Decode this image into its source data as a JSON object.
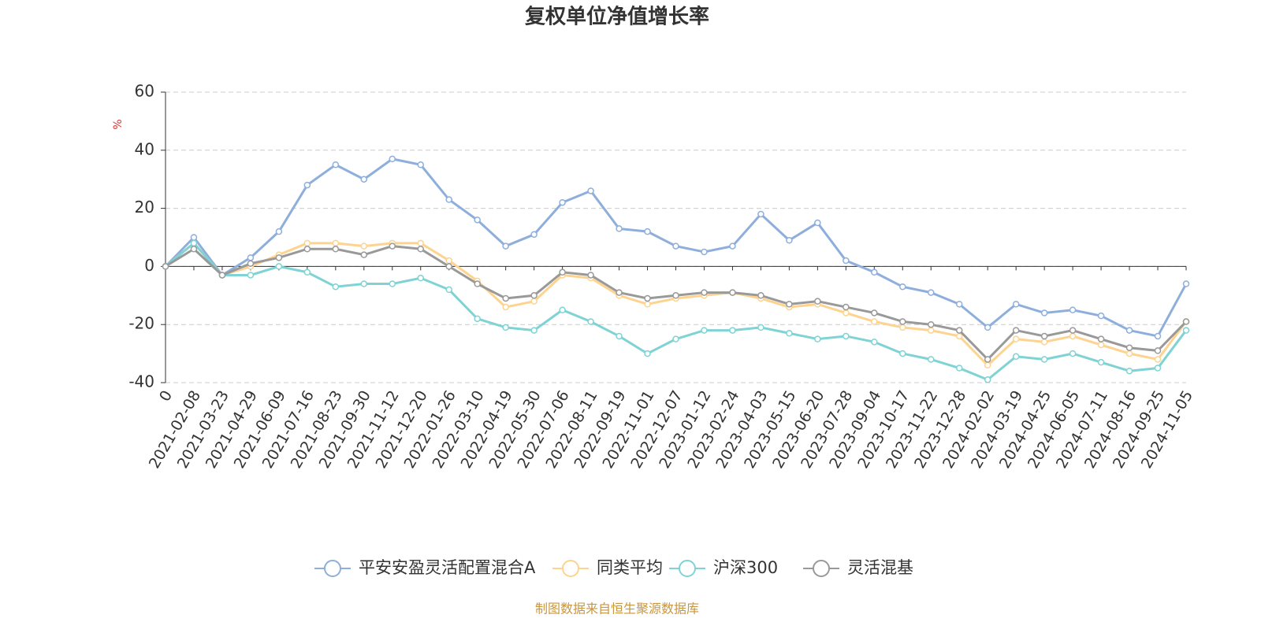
{
  "chart_data": {
    "type": "line",
    "title": "复权单位净值增长率",
    "y_label": "%",
    "source": "制图数据来自恒生聚源数据库",
    "categories": [
      "0",
      "2021-02-08",
      "2021-03-23",
      "2021-04-29",
      "2021-06-09",
      "2021-07-16",
      "2021-08-23",
      "2021-09-30",
      "2021-11-12",
      "2021-12-20",
      "2022-01-26",
      "2022-03-10",
      "2022-04-19",
      "2022-05-30",
      "2022-07-06",
      "2022-08-11",
      "2022-09-19",
      "2022-11-01",
      "2022-12-07",
      "2023-01-12",
      "2023-02-24",
      "2023-04-03",
      "2023-05-15",
      "2023-06-20",
      "2023-07-28",
      "2023-09-04",
      "2023-10-17",
      "2023-11-22",
      "2023-12-28",
      "2024-02-02",
      "2024-03-19",
      "2024-04-25",
      "2024-06-05",
      "2024-07-11",
      "2024-08-16",
      "2024-09-25",
      "2024-11-05"
    ],
    "series": [
      {
        "name": "平安安盈灵活配置混合A",
        "color": "#8eaedb",
        "values": [
          0,
          10,
          -3,
          3,
          12,
          28,
          35,
          30,
          37,
          35,
          23,
          16,
          7,
          11,
          22,
          26,
          13,
          12,
          7,
          5,
          7,
          18,
          9,
          15,
          2,
          -2,
          -7,
          -9,
          -13,
          -21,
          -13,
          -16,
          -15,
          -17,
          -22,
          -24,
          -6
        ]
      },
      {
        "name": "同类平均",
        "color": "#fdd38f",
        "values": [
          0,
          8,
          -3,
          0,
          4,
          8,
          8,
          7,
          8,
          8,
          2,
          -5,
          -14,
          -12,
          -3,
          -4,
          -10,
          -13,
          -11,
          -10,
          -9,
          -11,
          -14,
          -13,
          -16,
          -19,
          -21,
          -22,
          -24,
          -34,
          -25,
          -26,
          -24,
          -27,
          -30,
          -32,
          -19
        ]
      },
      {
        "name": "沪深300",
        "color": "#7fd3d4",
        "values": [
          0,
          8,
          -3,
          -3,
          0,
          -2,
          -7,
          -6,
          -6,
          -4,
          -8,
          -18,
          -21,
          -22,
          -15,
          -19,
          -24,
          -30,
          -25,
          -22,
          -22,
          -21,
          -23,
          -25,
          -24,
          -26,
          -30,
          -32,
          -35,
          -39,
          -31,
          -32,
          -30,
          -33,
          -36,
          -35,
          -22
        ]
      },
      {
        "name": "灵活混基",
        "color": "#999999",
        "values": [
          0,
          6,
          -3,
          1,
          3,
          6,
          6,
          4,
          7,
          6,
          0,
          -6,
          -11,
          -10,
          -2,
          -3,
          -9,
          -11,
          -10,
          -9,
          -9,
          -10,
          -13,
          -12,
          -14,
          -16,
          -19,
          -20,
          -22,
          -32,
          -22,
          -24,
          -22,
          -25,
          -28,
          -29,
          -19
        ]
      }
    ],
    "ylim": [
      -40,
      60
    ],
    "yticks": [
      -40,
      -20,
      0,
      20,
      40,
      60
    ],
    "grid": true
  }
}
